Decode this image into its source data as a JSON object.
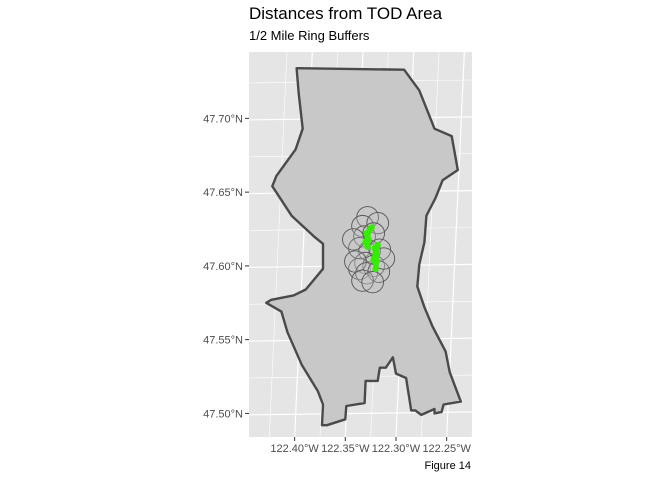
{
  "title": "Distances from TOD Area",
  "subtitle": "1/2 Mile Ring Buffers",
  "caption": "Figure 14",
  "colors": {
    "panel_background": "#e5e5e5",
    "gridlines": "#ffffff",
    "city_fill": "#c8c8c8",
    "city_outline": "#4a4a4a",
    "buffer_ring_outline": "#555555",
    "buffer_ring_fill": "#c8c8c8",
    "tod_stations": "#33ee00"
  },
  "chart_data": {
    "type": "map",
    "projection": "longitude/latitude",
    "xlim": [
      -122.445,
      -122.225
    ],
    "ylim": [
      47.484,
      47.745
    ],
    "x_ticks": [
      {
        "value": -122.4,
        "label": "122.40°W"
      },
      {
        "value": -122.35,
        "label": "122.35°W"
      },
      {
        "value": -122.3,
        "label": "122.30°W"
      },
      {
        "value": -122.25,
        "label": "122.25°W"
      }
    ],
    "y_ticks": [
      {
        "value": 47.7,
        "label": "47.70°N"
      },
      {
        "value": 47.65,
        "label": "47.65°N"
      },
      {
        "value": 47.6,
        "label": "47.60°N"
      },
      {
        "value": 47.55,
        "label": "47.55°N"
      },
      {
        "value": 47.5,
        "label": "47.50°N"
      }
    ],
    "grid": true,
    "city_boundary": [
      [
        -122.398,
        47.734
      ],
      [
        -122.292,
        47.733
      ],
      [
        -122.277,
        47.719
      ],
      [
        -122.262,
        47.693
      ],
      [
        -122.245,
        47.688
      ],
      [
        -122.239,
        47.665
      ],
      [
        -122.254,
        47.658
      ],
      [
        -122.261,
        47.646
      ],
      [
        -122.27,
        47.634
      ],
      [
        -122.272,
        47.616
      ],
      [
        -122.277,
        47.601
      ],
      [
        -122.279,
        47.586
      ],
      [
        -122.272,
        47.572
      ],
      [
        -122.264,
        47.559
      ],
      [
        -122.251,
        47.542
      ],
      [
        -122.247,
        47.528
      ],
      [
        -122.236,
        47.508
      ],
      [
        -122.253,
        47.506
      ],
      [
        -122.255,
        47.501
      ],
      [
        -122.262,
        47.5
      ],
      [
        -122.262,
        47.503
      ],
      [
        -122.275,
        47.499
      ],
      [
        -122.281,
        47.502
      ],
      [
        -122.285,
        47.502
      ],
      [
        -122.29,
        47.524
      ],
      [
        -122.3,
        47.527
      ],
      [
        -122.303,
        47.538
      ],
      [
        -122.31,
        47.531
      ],
      [
        -122.316,
        47.531
      ],
      [
        -122.318,
        47.522
      ],
      [
        -122.33,
        47.522
      ],
      [
        -122.331,
        47.507
      ],
      [
        -122.349,
        47.505
      ],
      [
        -122.35,
        47.496
      ],
      [
        -122.368,
        47.492
      ],
      [
        -122.373,
        47.492
      ],
      [
        -122.372,
        47.506
      ],
      [
        -122.377,
        47.515
      ],
      [
        -122.393,
        47.533
      ],
      [
        -122.407,
        47.555
      ],
      [
        -122.413,
        47.569
      ],
      [
        -122.428,
        47.575
      ],
      [
        -122.423,
        47.577
      ],
      [
        -122.401,
        47.58
      ],
      [
        -122.389,
        47.584
      ],
      [
        -122.372,
        47.598
      ],
      [
        -122.372,
        47.615
      ],
      [
        -122.381,
        47.62
      ],
      [
        -122.403,
        47.634
      ],
      [
        -122.422,
        47.654
      ],
      [
        -122.418,
        47.661
      ],
      [
        -122.399,
        47.679
      ],
      [
        -122.392,
        47.693
      ],
      [
        -122.396,
        47.717
      ],
      [
        -122.398,
        47.734
      ]
    ],
    "buffer_radius_miles": 0.5,
    "tod_station_points": [
      [
        -122.329,
        47.622
      ],
      [
        -122.327,
        47.618
      ],
      [
        -122.328,
        47.613
      ],
      [
        -122.33,
        47.616
      ],
      [
        -122.326,
        47.624
      ],
      [
        -122.324,
        47.626
      ],
      [
        -122.321,
        47.612
      ],
      [
        -122.32,
        47.608
      ],
      [
        -122.319,
        47.603
      ],
      [
        -122.32,
        47.598
      ],
      [
        -122.318,
        47.614
      ],
      [
        -122.322,
        47.604
      ]
    ],
    "buffer_centers": [
      [
        -122.328,
        47.633
      ],
      [
        -122.333,
        47.627
      ],
      [
        -122.318,
        47.629
      ],
      [
        -122.331,
        47.62
      ],
      [
        -122.322,
        47.622
      ],
      [
        -122.336,
        47.612
      ],
      [
        -122.326,
        47.61
      ],
      [
        -122.316,
        47.611
      ],
      [
        -122.33,
        47.602
      ],
      [
        -122.336,
        47.598
      ],
      [
        -122.322,
        47.6
      ],
      [
        -122.34,
        47.603
      ],
      [
        -122.329,
        47.595
      ],
      [
        -122.317,
        47.596
      ],
      [
        -122.333,
        47.59
      ],
      [
        -122.323,
        47.589
      ],
      [
        -122.312,
        47.605
      ],
      [
        -122.342,
        47.618
      ]
    ]
  }
}
